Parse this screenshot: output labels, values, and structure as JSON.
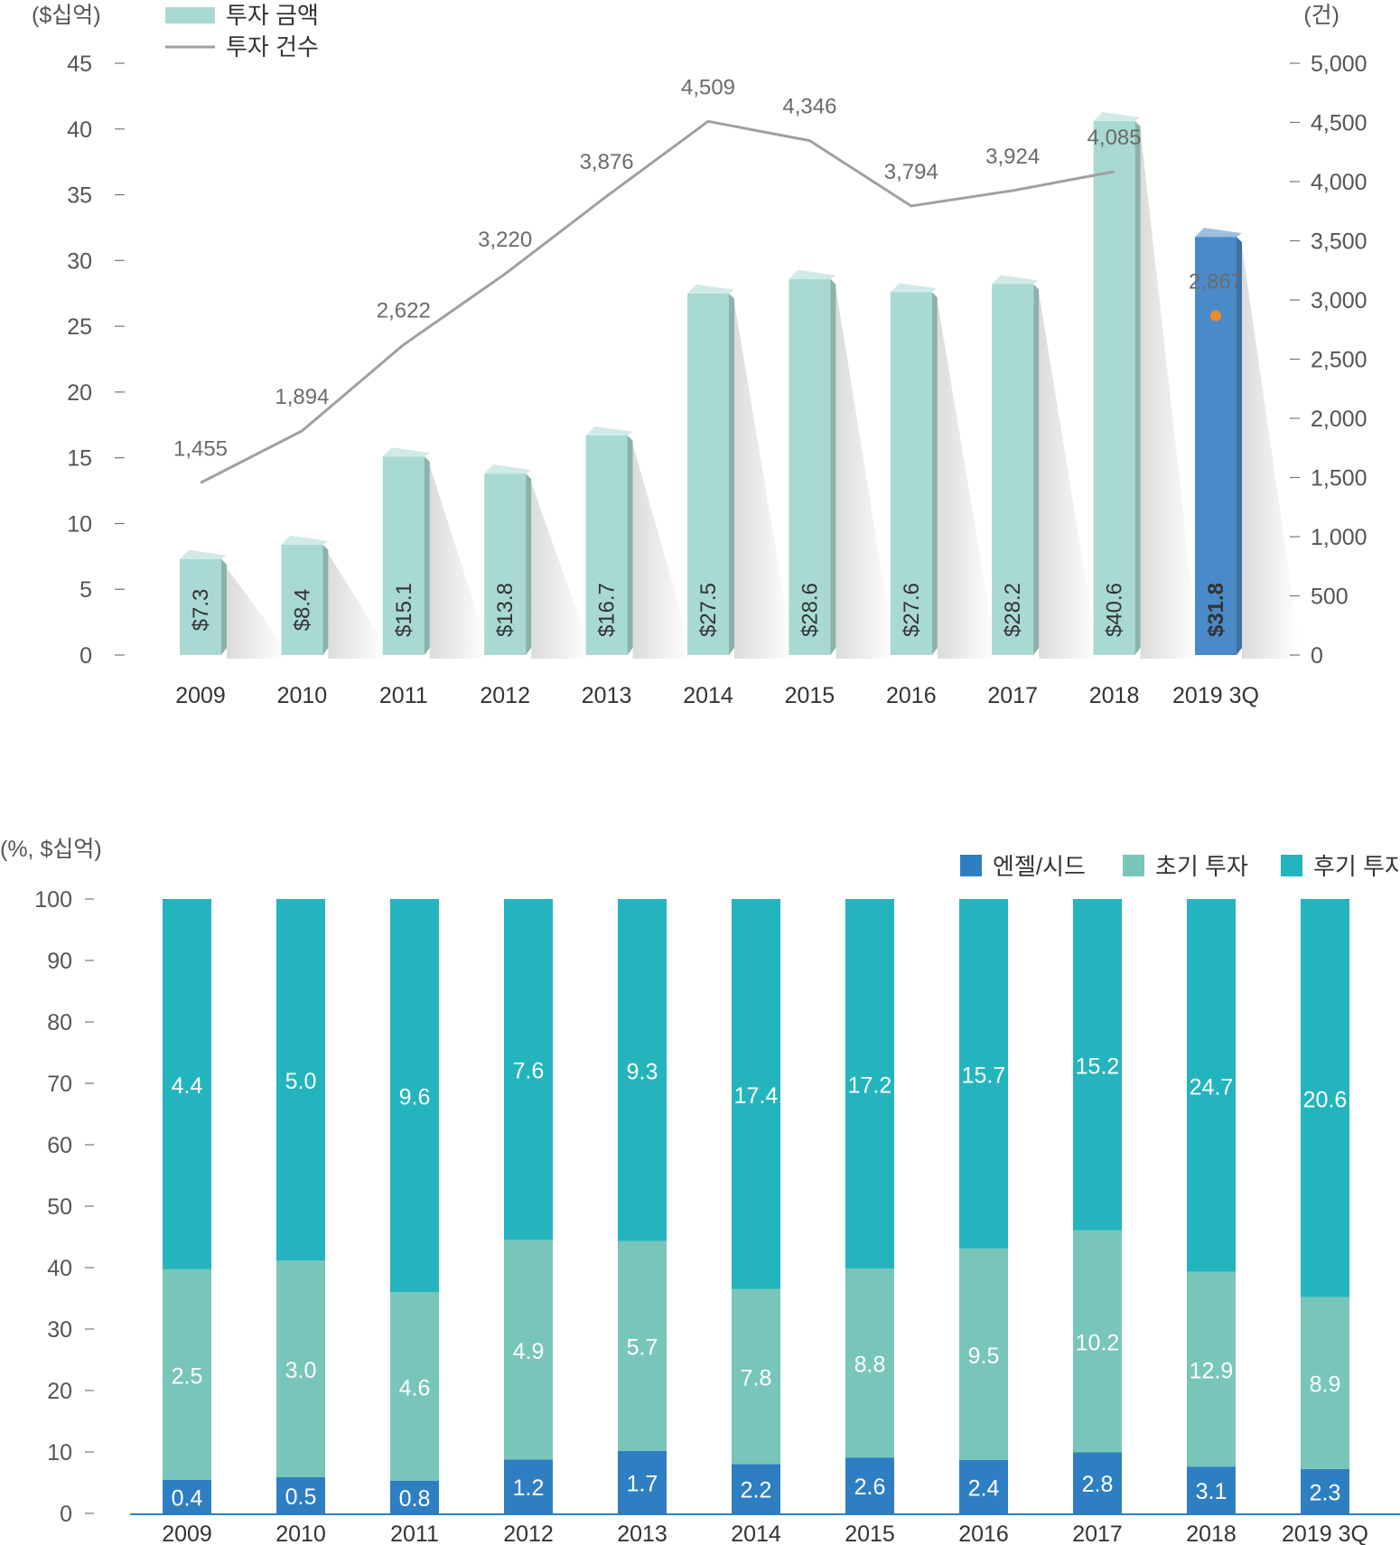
{
  "chart_data": [
    {
      "type": "bar",
      "categories": [
        "2009",
        "2010",
        "2011",
        "2012",
        "2013",
        "2014",
        "2015",
        "2016",
        "2017",
        "2018",
        "2019 3Q"
      ],
      "left_unit": "($십억)",
      "right_unit": "(건)",
      "left_ylim": [
        0,
        45
      ],
      "left_ticks": [
        "0",
        "5",
        "10",
        "15",
        "20",
        "25",
        "30",
        "35",
        "40",
        "45"
      ],
      "right_ylim": [
        0,
        5000
      ],
      "right_ticks": [
        "0",
        "500",
        "1,000",
        "1,500",
        "2,000",
        "2,500",
        "3,000",
        "3,500",
        "4,000",
        "4,500",
        "5,000"
      ],
      "series": [
        {
          "name": "투자 금액",
          "values": [
            7.3,
            8.4,
            15.1,
            13.8,
            16.7,
            27.5,
            28.6,
            27.6,
            28.2,
            40.6,
            31.8
          ],
          "labels": [
            "$7.3",
            "$8.4",
            "$15.1",
            "$13.8",
            "$16.7",
            "$27.5",
            "$28.6",
            "$27.6",
            "$28.2",
            "$40.6",
            "$31.8"
          ],
          "color": "#a9d9d3",
          "highlight_color": "#4a8ac8"
        },
        {
          "name": "투자 건수",
          "values": [
            1455,
            1894,
            2622,
            3220,
            3876,
            4509,
            4346,
            3794,
            3924,
            4085,
            2867
          ],
          "labels": [
            "1,455",
            "1,894",
            "2,622",
            "3,220",
            "3,876",
            "4,509",
            "4,346",
            "3,794",
            "3,924",
            "4,085",
            "2,867"
          ],
          "color": "#a0a0a0",
          "highlight_color": "#f08a24"
        }
      ],
      "legend": "top-left",
      "grid": false
    },
    {
      "type": "bar",
      "stacked": true,
      "categories": [
        "2009",
        "2010",
        "2011",
        "2012",
        "2013",
        "2014",
        "2015",
        "2016",
        "2017",
        "2018",
        "2019 3Q"
      ],
      "unit": "(%, $십억)",
      "ylim": [
        0,
        100
      ],
      "ticks": [
        "0",
        "10",
        "20",
        "30",
        "40",
        "50",
        "60",
        "70",
        "80",
        "90",
        "100"
      ],
      "series": [
        {
          "name": "엔젤/시드",
          "color": "#2e7fc2",
          "values": [
            0.4,
            0.5,
            0.8,
            1.2,
            1.7,
            2.2,
            2.6,
            2.4,
            2.8,
            3.1,
            2.3
          ],
          "labels": [
            "0.4",
            "0.5",
            "0.8",
            "1.2",
            "1.7",
            "2.2",
            "2.6",
            "2.4",
            "2.8",
            "3.1",
            "2.3"
          ]
        },
        {
          "name": "초기 투자",
          "color": "#78c5ba",
          "values": [
            2.5,
            3.0,
            4.6,
            4.9,
            5.7,
            7.8,
            8.8,
            9.5,
            10.2,
            12.9,
            8.9
          ],
          "labels": [
            "2.5",
            "3.0",
            "4.6",
            "4.9",
            "5.7",
            "7.8",
            "8.8",
            "9.5",
            "10.2",
            "12.9",
            "8.9"
          ]
        },
        {
          "name": "후기 투자",
          "color": "#24b4be",
          "values": [
            4.4,
            5.0,
            9.6,
            7.6,
            9.3,
            17.4,
            17.2,
            15.7,
            15.2,
            24.7,
            20.6
          ],
          "labels": [
            "4.4",
            "5.0",
            "9.6",
            "7.6",
            "9.3",
            "17.4",
            "17.2",
            "15.7",
            "15.2",
            "24.7",
            "20.6"
          ]
        }
      ],
      "legend": "top-right",
      "grid": false
    }
  ]
}
